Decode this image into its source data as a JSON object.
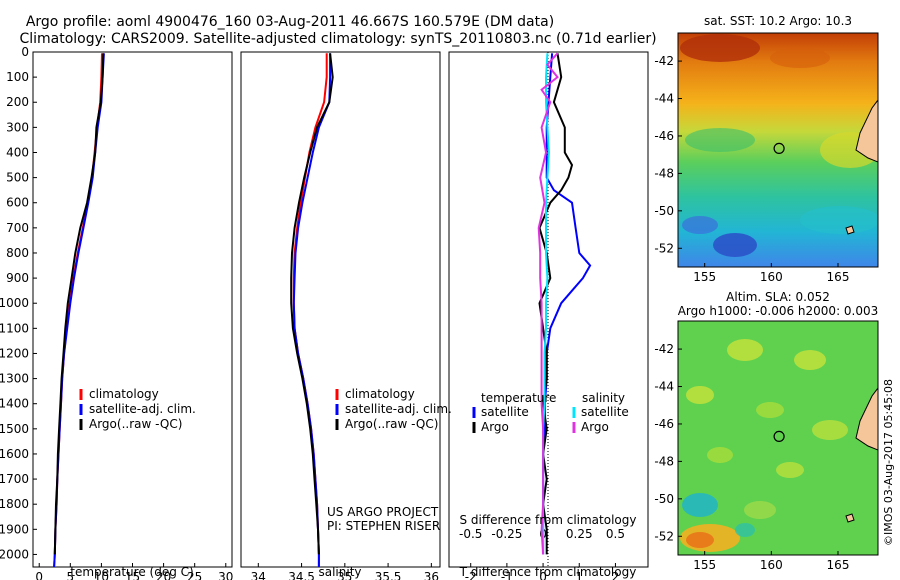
{
  "header": {
    "title_line1": "Argo profile: aoml 4900476_160 03-Aug-2011 46.667S 160.579E (DM data)",
    "title_line2": "Climatology: CARS2009. Satellite-adjusted climatology: synTS_20110803.nc (0.71d earlier)"
  },
  "credits": {
    "project": "US ARGO PROJECT",
    "pi": "PI: STEPHEN RISER",
    "copyright": "©IMOS 03-Aug-2017 05:45:08"
  },
  "colors": {
    "climatology": "#ff0000",
    "satellite": "#0000ff",
    "argo": "#000000",
    "sat_salinity": "#00e5ff",
    "argo_salinity": "#e033e0"
  },
  "chart_data": [
    {
      "type": "line",
      "id": "temperature",
      "xlabel": "temperature (deg C)",
      "xlim": [
        -1,
        31
      ],
      "ylim": [
        0,
        2050
      ],
      "x_ticks": [
        0,
        5,
        10,
        15,
        20,
        25,
        30
      ],
      "y_ticks": [
        0,
        100,
        200,
        300,
        400,
        500,
        600,
        700,
        800,
        900,
        1000,
        1100,
        1200,
        1300,
        1400,
        1500,
        1600,
        1700,
        1800,
        1900,
        2000
      ],
      "y_inverted": true,
      "legend": [
        "climatology",
        "satellite-adj. clim.",
        "Argo(..raw -QC)"
      ],
      "series": [
        {
          "name": "climatology",
          "color": "#ff0000",
          "depth": [
            5,
            100,
            200,
            300,
            400,
            500,
            600,
            700,
            800,
            900,
            1000,
            1100,
            1200,
            1300,
            1400,
            1500,
            1600,
            1700,
            1800,
            1900,
            2000,
            2050
          ],
          "values": [
            10.1,
            10.0,
            9.8,
            9.3,
            8.9,
            8.5,
            7.8,
            7.0,
            6.2,
            5.5,
            4.9,
            4.4,
            4.0,
            3.7,
            3.5,
            3.3,
            3.1,
            2.9,
            2.8,
            2.6,
            2.5,
            2.4
          ]
        },
        {
          "name": "satellite-adj. clim.",
          "color": "#0000ff",
          "depth": [
            5,
            100,
            200,
            300,
            400,
            500,
            600,
            700,
            800,
            900,
            1000,
            1100,
            1200,
            1300,
            1400,
            1500,
            1600,
            1700,
            1800,
            1900,
            2000,
            2050
          ],
          "values": [
            10.4,
            10.2,
            10.0,
            9.4,
            9.0,
            8.6,
            7.9,
            7.1,
            6.3,
            5.6,
            5.0,
            4.5,
            4.0,
            3.7,
            3.5,
            3.3,
            3.1,
            2.9,
            2.8,
            2.6,
            2.5,
            2.4
          ]
        },
        {
          "name": "Argo(..raw -QC)",
          "color": "#000000",
          "depth": [
            5,
            100,
            200,
            300,
            400,
            500,
            600,
            700,
            800,
            900,
            1000,
            1100,
            1200,
            1300,
            1400,
            1500,
            1600,
            1700,
            1800,
            1900,
            2000
          ],
          "values": [
            10.3,
            10.2,
            9.9,
            9.2,
            9.0,
            8.4,
            7.7,
            6.6,
            5.8,
            5.2,
            4.6,
            4.2,
            3.9,
            3.6,
            3.4,
            3.2,
            3.0,
            2.9,
            2.7,
            2.6,
            2.5
          ]
        }
      ]
    },
    {
      "type": "line",
      "id": "salinity",
      "xlabel": "salinity",
      "xlim": [
        33.8,
        36.1
      ],
      "ylim": [
        0,
        2050
      ],
      "x_ticks": [
        34,
        34.5,
        35,
        35.5,
        36
      ],
      "y_inverted": true,
      "legend": [
        "climatology",
        "satellite-adj. clim.",
        "Argo(..raw -QC)"
      ],
      "series": [
        {
          "name": "climatology",
          "color": "#ff0000",
          "depth": [
            5,
            100,
            200,
            300,
            400,
            500,
            600,
            700,
            800,
            900,
            1000,
            1100,
            1200,
            1300,
            1400,
            1500,
            1600,
            1700,
            1800,
            1900,
            2000,
            2050
          ],
          "values": [
            34.79,
            34.79,
            34.76,
            34.66,
            34.59,
            34.54,
            34.49,
            34.45,
            34.42,
            34.41,
            34.41,
            34.42,
            34.46,
            34.52,
            34.57,
            34.61,
            34.64,
            34.66,
            34.68,
            34.69,
            34.7,
            34.7
          ]
        },
        {
          "name": "satellite-adj. clim.",
          "color": "#0000ff",
          "depth": [
            5,
            100,
            200,
            300,
            400,
            500,
            600,
            700,
            800,
            900,
            1000,
            1100,
            1200,
            1300,
            1400,
            1500,
            1600,
            1700,
            1800,
            1900,
            2000,
            2050
          ],
          "values": [
            34.83,
            34.83,
            34.82,
            34.7,
            34.63,
            34.57,
            34.51,
            34.46,
            34.43,
            34.42,
            34.41,
            34.42,
            34.46,
            34.52,
            34.57,
            34.61,
            34.64,
            34.66,
            34.68,
            34.69,
            34.7,
            34.7
          ]
        },
        {
          "name": "Argo(..raw -QC)",
          "color": "#000000",
          "depth": [
            5,
            100,
            200,
            300,
            400,
            500,
            600,
            700,
            800,
            900,
            1000,
            1100,
            1200,
            1300,
            1400,
            1500,
            1600,
            1700,
            1800,
            1900,
            2000
          ],
          "values": [
            34.83,
            34.86,
            34.82,
            34.68,
            34.6,
            34.53,
            34.47,
            34.42,
            34.39,
            34.38,
            34.38,
            34.4,
            34.45,
            34.51,
            34.56,
            34.6,
            34.63,
            34.65,
            34.67,
            34.69,
            34.7
          ]
        }
      ]
    },
    {
      "type": "line",
      "id": "differences",
      "xlabel": "T difference from climatology",
      "xlabel_top": "S difference from climatology",
      "xlim_T": [
        -2.6,
        2.9
      ],
      "x_ticks_T": [
        -2,
        -1,
        0,
        1,
        2
      ],
      "x_ticks_S": [
        -0.5,
        -0.25,
        0,
        0.25,
        0.5
      ],
      "s_to_t_scale": 4,
      "y_inverted": true,
      "legend_temperature_title": "temperature",
      "legend_salinity_title": "salinity",
      "legend_temperature": [
        "satellite",
        "Argo"
      ],
      "legend_salinity": [
        "satellite",
        "Argo"
      ],
      "series": [
        {
          "name": "T satellite",
          "color": "#0000ff",
          "depth": [
            5,
            100,
            200,
            300,
            400,
            500,
            550,
            600,
            700,
            800,
            850,
            900,
            950,
            1000,
            1100,
            1200,
            1300,
            1400,
            1500,
            1600,
            1700,
            1800,
            1900,
            2000
          ],
          "values": [
            0.25,
            0.2,
            0.15,
            0.1,
            0.1,
            0.1,
            0.3,
            0.8,
            0.9,
            1.0,
            1.3,
            1.1,
            0.8,
            0.5,
            0.2,
            0.1,
            0.1,
            0.05,
            0.05,
            0.0,
            0.0,
            0.0,
            0.0,
            0.0
          ]
        },
        {
          "name": "T Argo",
          "color": "#000000",
          "depth": [
            5,
            100,
            200,
            300,
            400,
            450,
            500,
            550,
            600,
            700,
            800,
            900,
            1000,
            1100,
            1200,
            1300,
            1400,
            1500,
            1600,
            1700,
            1800,
            1900,
            2000
          ],
          "values": [
            0.4,
            0.5,
            0.3,
            0.6,
            0.6,
            0.8,
            0.7,
            0.5,
            0.2,
            -0.1,
            0.1,
            0.2,
            -0.1,
            0.0,
            0.1,
            0.1,
            0.0,
            0.1,
            0.0,
            0.1,
            0.0,
            0.1,
            0.1
          ]
        },
        {
          "name": "S satellite",
          "color": "#00e5ff",
          "depth": [
            5,
            100,
            200,
            300,
            400,
            500,
            600,
            700,
            800,
            900,
            1000,
            1100,
            1200,
            1300,
            1400,
            1500,
            1600,
            1700,
            1800,
            1900,
            2000
          ],
          "values": [
            0.03,
            0.02,
            0.02,
            0.03,
            0.04,
            0.03,
            0.02,
            0.02,
            0.02,
            0.03,
            0.02,
            0.02,
            0.01,
            0.01,
            0.01,
            0.0,
            0.0,
            0.0,
            0.0,
            0.0,
            0.0
          ]
        },
        {
          "name": "S Argo",
          "color": "#e033e0",
          "depth": [
            5,
            50,
            100,
            150,
            200,
            300,
            400,
            500,
            600,
            700,
            800,
            900,
            1000,
            1100,
            1200,
            1300,
            1400,
            1500,
            1600,
            1700,
            1800,
            1900,
            2000
          ],
          "values": [
            0.1,
            0.03,
            0.1,
            -0.01,
            0.05,
            -0.01,
            0.02,
            -0.02,
            0.01,
            -0.03,
            -0.02,
            -0.02,
            -0.01,
            -0.01,
            -0.01,
            -0.01,
            -0.01,
            0.0,
            0.0,
            0.0,
            0.0,
            -0.01,
            0.0
          ]
        }
      ]
    },
    {
      "type": "heatmap",
      "id": "sst_map",
      "title": "sat. SST: 10.2 Argo: 10.3",
      "xlim": [
        153,
        168
      ],
      "ylim": [
        -53,
        -40.5
      ],
      "x_ticks": [
        155,
        160,
        165
      ],
      "y_ticks": [
        -42,
        -44,
        -46,
        -48,
        -50,
        -52
      ],
      "marker": {
        "lon": 160.579,
        "lat": -46.667
      }
    },
    {
      "type": "heatmap",
      "id": "sla_map",
      "title_line1": "Altim. SLA: 0.052",
      "title_line2": "Argo h1000: -0.006 h2000: 0.003",
      "xlim": [
        153,
        168
      ],
      "ylim": [
        -53,
        -40.5
      ],
      "x_ticks": [
        155,
        160,
        165
      ],
      "y_ticks": [
        -42,
        -44,
        -46,
        -48,
        -50,
        -52
      ],
      "marker": {
        "lon": 160.579,
        "lat": -46.667
      }
    }
  ]
}
